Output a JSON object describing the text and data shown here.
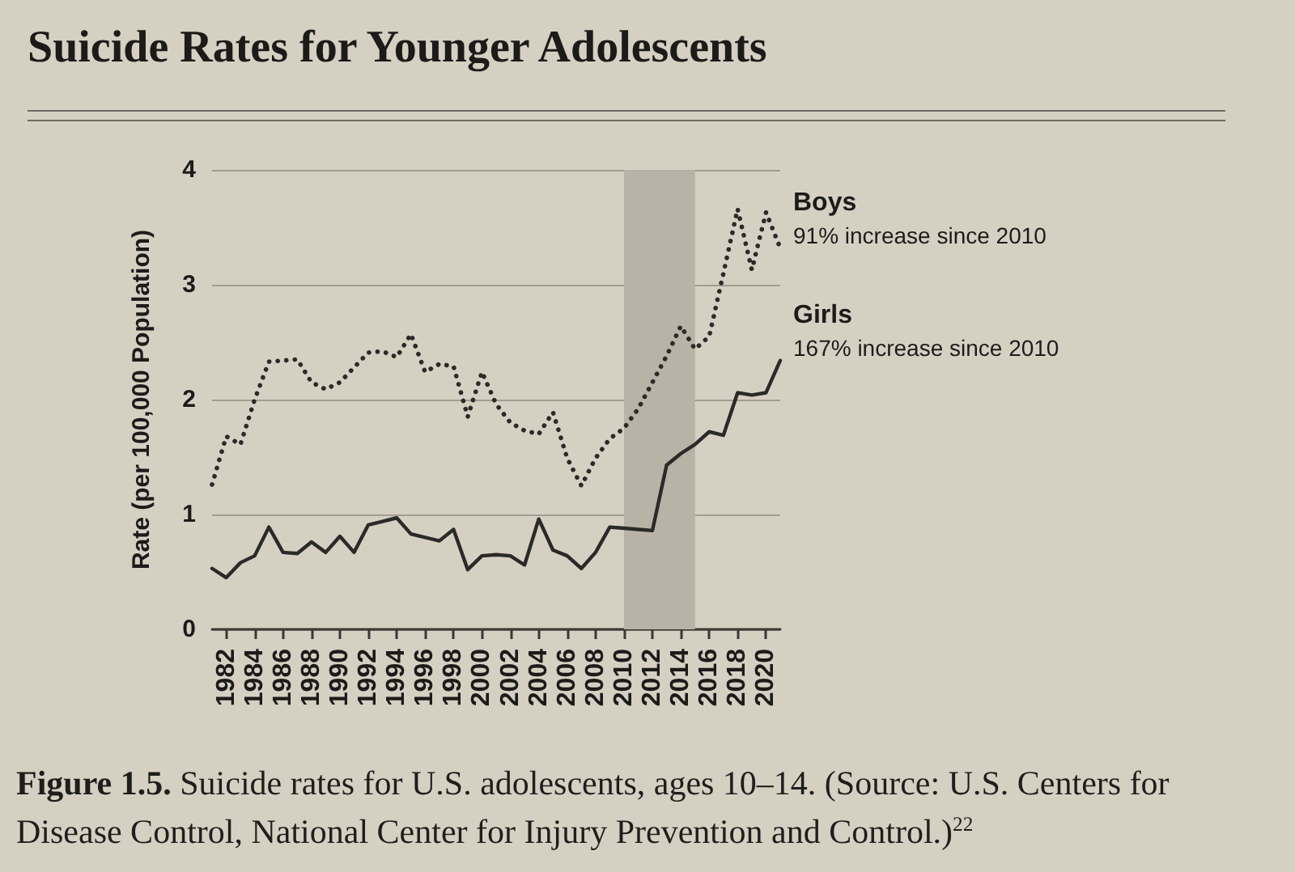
{
  "chart_data": {
    "type": "line",
    "title": "Suicide Rates for Younger Adolescents",
    "ylabel": "Rate (per 100,000 Population)",
    "x": [
      1981,
      1982,
      1983,
      1984,
      1985,
      1986,
      1987,
      1988,
      1989,
      1990,
      1991,
      1992,
      1993,
      1994,
      1995,
      1996,
      1997,
      1998,
      1999,
      2000,
      2001,
      2002,
      2003,
      2004,
      2005,
      2006,
      2007,
      2008,
      2009,
      2010,
      2011,
      2012,
      2013,
      2014,
      2015,
      2016,
      2017,
      2018,
      2019,
      2020,
      2021
    ],
    "series": [
      {
        "name": "Boys",
        "color": "#2b2a28",
        "line_style": "dotted",
        "values": [
          1.26,
          1.68,
          1.61,
          2.0,
          2.33,
          2.34,
          2.35,
          2.15,
          2.09,
          2.15,
          2.28,
          2.41,
          2.42,
          2.37,
          2.57,
          2.24,
          2.31,
          2.29,
          1.85,
          2.24,
          1.96,
          1.8,
          1.73,
          1.7,
          1.89,
          1.49,
          1.25,
          1.49,
          1.66,
          1.75,
          1.92,
          2.15,
          2.38,
          2.64,
          2.44,
          2.55,
          3.1,
          3.66,
          3.13,
          3.63,
          3.32
        ]
      },
      {
        "name": "Girls",
        "color": "#2b2a28",
        "line_style": "solid",
        "values": [
          0.53,
          0.45,
          0.58,
          0.64,
          0.89,
          0.67,
          0.66,
          0.76,
          0.67,
          0.81,
          0.67,
          0.91,
          0.94,
          0.97,
          0.83,
          0.8,
          0.77,
          0.87,
          0.52,
          0.64,
          0.65,
          0.64,
          0.56,
          0.96,
          0.69,
          0.64,
          0.53,
          0.67,
          0.89,
          0.88,
          0.87,
          0.86,
          1.43,
          1.53,
          1.61,
          1.72,
          1.69,
          2.06,
          2.04,
          2.06,
          2.34
        ]
      }
    ],
    "xlim": [
      1981,
      2021
    ],
    "xticks": [
      1982,
      1984,
      1986,
      1988,
      1990,
      1992,
      1994,
      1996,
      1998,
      2000,
      2002,
      2004,
      2006,
      2008,
      2010,
      2012,
      2014,
      2016,
      2018,
      2020
    ],
    "ylim": [
      0,
      4
    ],
    "yticks": [
      0,
      1,
      2,
      3,
      4
    ],
    "grid": "y",
    "marker": "none",
    "bands": [
      {
        "axis": "x",
        "from": 2010,
        "to": 2015,
        "color": "#b9b2a6"
      }
    ],
    "annotations": [
      "91% increase since 2010",
      "167% increase since 2010",
      "Figure 1.5.",
      "Suicide rates for U.S. adolescents, ages 10–14. (Source: U.S. Centers for Disease Control, National Center for Injury Prevention and Control.)$^{22}$"
    ]
  }
}
